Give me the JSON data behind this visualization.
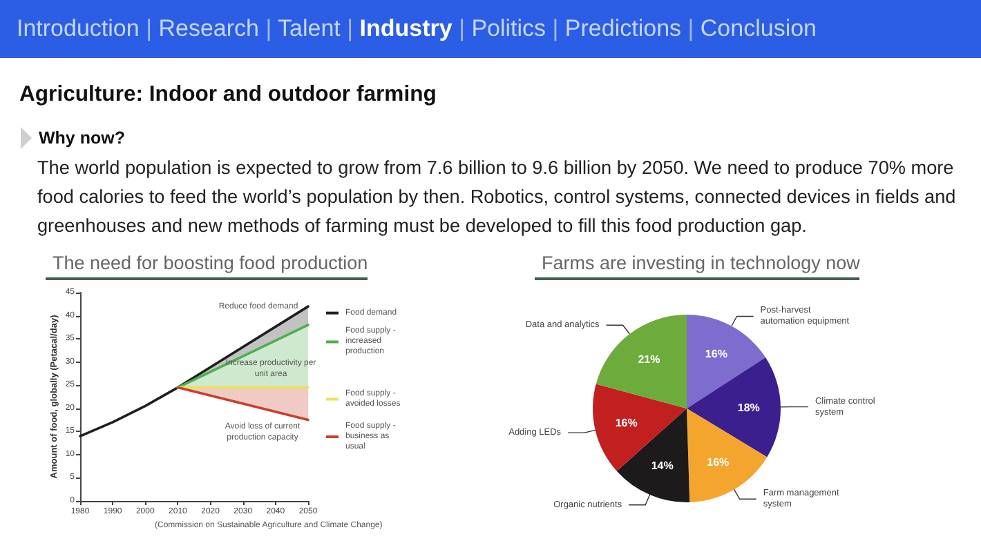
{
  "chart_data": [
    {
      "type": "line",
      "title": "The need for boosting food production",
      "ylabel": "Amount of food, globally (Petacal/day)",
      "annotations": [
        "Introduction | Research | Talent | Industry | Politics | Predictions | Conclusion",
        "Agriculture: Indoor and outdoor farming",
        "Why now?",
        "The world population is expected to grow from 7.6 billion to 9.6 billion by 2050. We need to produce 70% more food calories to feed the world’s population by then. Robotics, control systems, connected devices in fields and greenhouses and new methods of farming must be developed to fill this food production gap.",
        "(Commission on Sustainable Agriculture and Climate Change)",
        "Reduce food demand",
        "Increase productivity per unit area",
        "Avoid loss of current production capacity"
      ],
      "series": [
        {
          "name": "Food demand",
          "color": "#1f1f1f",
          "x": [
            1980,
            1990,
            2000,
            2010,
            2050
          ],
          "values": [
            14,
            17,
            20.5,
            24.5,
            42
          ],
          "lower": [
            null,
            null,
            null,
            24.5,
            38
          ],
          "upper": [
            null,
            null,
            null,
            24.5,
            42
          ]
        },
        {
          "name": "Food supply - increased production",
          "color": "#4daf4f",
          "x": [
            2010,
            2050
          ],
          "values": [
            24.5,
            38
          ],
          "lower": [
            24.5,
            24.5
          ],
          "upper": [
            24.5,
            38
          ]
        },
        {
          "name": "Food supply - avoided losses",
          "color": "#ece15a",
          "x": [
            2010,
            2050
          ],
          "values": [
            24.5,
            24.5
          ]
        },
        {
          "name": "Food supply - business as usual",
          "color": "#c9402c",
          "x": [
            2010,
            2050
          ],
          "values": [
            24.5,
            17.5
          ],
          "lower": [
            24.5,
            17.5
          ],
          "upper": [
            24.5,
            24.5
          ]
        }
      ],
      "xlim": [
        1980,
        2050
      ],
      "xticks": [
        1980,
        1990,
        2000,
        2010,
        2020,
        2030,
        2040,
        2050
      ],
      "ylim": [
        0,
        45
      ],
      "yticks": [
        0,
        5,
        10,
        15,
        20,
        25,
        30,
        35,
        40,
        45
      ],
      "legend": "right",
      "marker": "none"
    },
    {
      "type": "pie",
      "title": "Farms are investing in technology now",
      "categories": [
        "Post-harvest automation equipment",
        "Climate control system",
        "Farm management system",
        "Organic nutrients",
        "Adding LEDs",
        "Data and analytics"
      ],
      "values": [
        16,
        18,
        16,
        14,
        16,
        21
      ],
      "colors": [
        "#7e6ccf",
        "#3b1f8e",
        "#f4a52e",
        "#1c1a1a",
        "#c1201f",
        "#6dac3c"
      ],
      "value_labels": [
        "16%",
        "18%",
        "16%",
        "14%",
        "16%",
        "21%"
      ]
    }
  ]
}
